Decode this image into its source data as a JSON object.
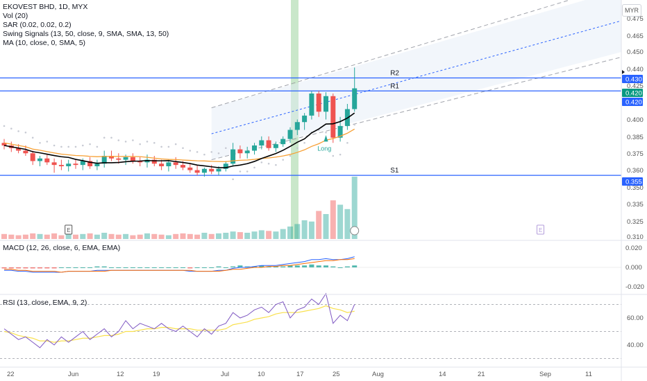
{
  "header": {
    "symbol": "EKOVEST BHD, 1D, MYX",
    "vol": "Vol (20)",
    "sar": "SAR (0.02, 0.02, 0.2)",
    "swing": "Swing Signals (13, 50, close, 9, SMA, SMA, 13, 50)",
    "ma": "MA (10, close, 0, SMA, 5)"
  },
  "currency": "MYR",
  "macd_label": "MACD (12, 26, close, 6, EMA, EMA)",
  "rsi_label": "RSI (13, close, EMA, 9, 2)",
  "colors": {
    "up": "#26a69a",
    "down": "#ef5350",
    "level": "#2962ff",
    "ma": "#000000",
    "swing": "#f7a034",
    "sar": "#c7cad3",
    "channel": "#a0a3ab",
    "highlight": "#4caf50",
    "rsi": "#7e57c2",
    "rsi_signal": "#f9e04b"
  },
  "chart_data": [
    {
      "type": "candlestick",
      "yaxis": {
        "range": [
          0.306,
          0.49
        ],
        "ticks": [
          "0.475",
          "0.465",
          "0.450",
          "0.440",
          "0.425",
          "0.400",
          "0.385",
          "0.375",
          "0.360",
          "0.350",
          "0.335",
          "0.325",
          "0.310"
        ]
      },
      "xaxis": {
        "labels": [
          "22",
          "Jun",
          "12",
          "19",
          "Jul",
          "10",
          "17",
          "25",
          "Aug",
          "14",
          "21",
          "Sep",
          "11"
        ]
      },
      "levels": [
        {
          "name": "R2",
          "value": 0.43
        },
        {
          "name": "R1",
          "value": 0.42
        },
        {
          "name": "S1",
          "value": 0.355
        }
      ],
      "price_tags": [
        "0.430",
        "0.420",
        "0.420",
        "0.355"
      ],
      "markers": {
        "long": "Long",
        "earnings": "E"
      },
      "ohlc": [
        [
          0.38,
          0.383,
          0.375,
          0.378
        ],
        [
          0.378,
          0.381,
          0.373,
          0.376
        ],
        [
          0.376,
          0.379,
          0.372,
          0.374
        ],
        [
          0.374,
          0.378,
          0.37,
          0.372
        ],
        [
          0.372,
          0.374,
          0.363,
          0.366
        ],
        [
          0.366,
          0.37,
          0.362,
          0.368
        ],
        [
          0.368,
          0.371,
          0.363,
          0.365
        ],
        [
          0.365,
          0.368,
          0.357,
          0.363
        ],
        [
          0.363,
          0.367,
          0.359,
          0.362
        ],
        [
          0.362,
          0.367,
          0.358,
          0.364
        ],
        [
          0.364,
          0.367,
          0.36,
          0.363
        ],
        [
          0.363,
          0.368,
          0.359,
          0.366
        ],
        [
          0.366,
          0.369,
          0.36,
          0.362
        ],
        [
          0.362,
          0.367,
          0.359,
          0.364
        ],
        [
          0.364,
          0.374,
          0.361,
          0.37
        ],
        [
          0.37,
          0.374,
          0.366,
          0.368
        ],
        [
          0.368,
          0.372,
          0.364,
          0.367
        ],
        [
          0.367,
          0.371,
          0.363,
          0.369
        ],
        [
          0.369,
          0.372,
          0.364,
          0.366
        ],
        [
          0.366,
          0.369,
          0.362,
          0.365
        ],
        [
          0.365,
          0.371,
          0.361,
          0.367
        ],
        [
          0.367,
          0.37,
          0.362,
          0.364
        ],
        [
          0.364,
          0.367,
          0.359,
          0.362
        ],
        [
          0.362,
          0.367,
          0.358,
          0.365
        ],
        [
          0.365,
          0.369,
          0.36,
          0.363
        ],
        [
          0.363,
          0.366,
          0.359,
          0.361
        ],
        [
          0.361,
          0.364,
          0.357,
          0.359
        ],
        [
          0.359,
          0.363,
          0.355,
          0.357
        ],
        [
          0.357,
          0.361,
          0.354,
          0.36
        ],
        [
          0.36,
          0.363,
          0.356,
          0.358
        ],
        [
          0.358,
          0.362,
          0.355,
          0.36
        ],
        [
          0.36,
          0.366,
          0.358,
          0.364
        ],
        [
          0.364,
          0.38,
          0.362,
          0.375
        ],
        [
          0.375,
          0.378,
          0.368,
          0.372
        ],
        [
          0.372,
          0.377,
          0.368,
          0.374
        ],
        [
          0.374,
          0.38,
          0.371,
          0.378
        ],
        [
          0.378,
          0.385,
          0.375,
          0.382
        ],
        [
          0.382,
          0.385,
          0.374,
          0.376
        ],
        [
          0.376,
          0.381,
          0.373,
          0.379
        ],
        [
          0.379,
          0.385,
          0.377,
          0.383
        ],
        [
          0.383,
          0.392,
          0.38,
          0.39
        ],
        [
          0.39,
          0.398,
          0.386,
          0.396
        ],
        [
          0.396,
          0.403,
          0.39,
          0.401
        ],
        [
          0.401,
          0.42,
          0.398,
          0.418
        ],
        [
          0.418,
          0.42,
          0.4,
          0.404
        ],
        [
          0.404,
          0.419,
          0.398,
          0.416
        ],
        [
          0.416,
          0.418,
          0.38,
          0.384
        ],
        [
          0.384,
          0.4,
          0.381,
          0.393
        ],
        [
          0.393,
          0.41,
          0.39,
          0.406
        ],
        [
          0.406,
          0.438,
          0.404,
          0.422
        ]
      ],
      "volume": [
        8,
        7,
        6,
        7,
        9,
        8,
        7,
        9,
        6,
        8,
        7,
        8,
        9,
        7,
        10,
        8,
        7,
        8,
        6,
        7,
        9,
        8,
        7,
        6,
        8,
        9,
        8,
        7,
        10,
        8,
        9,
        10,
        12,
        11,
        10,
        12,
        14,
        13,
        12,
        16,
        20,
        24,
        30,
        28,
        45,
        40,
        62,
        55,
        48,
        100
      ]
    },
    {
      "type": "line",
      "name": "MACD",
      "yaxis": {
        "ticks": [
          "0.020",
          "0.000",
          "-0.020"
        ]
      },
      "macd": [
        -0.003,
        -0.003,
        -0.004,
        -0.004,
        -0.005,
        -0.005,
        -0.005,
        -0.005,
        -0.005,
        -0.004,
        -0.004,
        -0.004,
        -0.004,
        -0.003,
        -0.003,
        -0.003,
        -0.003,
        -0.003,
        -0.003,
        -0.003,
        -0.003,
        -0.003,
        -0.003,
        -0.003,
        -0.003,
        -0.003,
        -0.004,
        -0.004,
        -0.004,
        -0.004,
        -0.003,
        -0.003,
        -0.001,
        0.0,
        0.0,
        0.001,
        0.002,
        0.002,
        0.002,
        0.003,
        0.004,
        0.005,
        0.006,
        0.008,
        0.008,
        0.009,
        0.008,
        0.008,
        0.009,
        0.011
      ],
      "signal": [
        -0.002,
        -0.002,
        -0.003,
        -0.003,
        -0.004,
        -0.004,
        -0.004,
        -0.004,
        -0.005,
        -0.004,
        -0.004,
        -0.004,
        -0.004,
        -0.004,
        -0.004,
        -0.003,
        -0.003,
        -0.003,
        -0.003,
        -0.003,
        -0.003,
        -0.003,
        -0.003,
        -0.003,
        -0.003,
        -0.003,
        -0.003,
        -0.004,
        -0.004,
        -0.004,
        -0.004,
        -0.003,
        -0.002,
        -0.002,
        -0.001,
        0.0,
        0.0,
        0.001,
        0.001,
        0.002,
        0.002,
        0.003,
        0.004,
        0.005,
        0.006,
        0.007,
        0.007,
        0.008,
        0.008,
        0.009
      ]
    },
    {
      "type": "line",
      "name": "RSI",
      "yaxis": {
        "ticks": [
          "60.00",
          "40.00"
        ]
      },
      "rsi": [
        52,
        48,
        44,
        46,
        42,
        38,
        44,
        40,
        46,
        42,
        46,
        50,
        44,
        48,
        52,
        46,
        50,
        58,
        52,
        56,
        54,
        52,
        56,
        52,
        50,
        54,
        50,
        46,
        52,
        48,
        54,
        56,
        64,
        60,
        62,
        66,
        68,
        64,
        70,
        72,
        60,
        66,
        68,
        74,
        70,
        78,
        56,
        62,
        58,
        70
      ],
      "signal": [
        50,
        49,
        47,
        46,
        45,
        43,
        43,
        42,
        43,
        43,
        44,
        45,
        45,
        46,
        47,
        47,
        48,
        50,
        50,
        51,
        52,
        52,
        53,
        53,
        52,
        52,
        52,
        51,
        51,
        51,
        51,
        52,
        55,
        56,
        57,
        59,
        60,
        61,
        63,
        64,
        64,
        64,
        65,
        66,
        67,
        69,
        67,
        66,
        64,
        65
      ]
    }
  ]
}
